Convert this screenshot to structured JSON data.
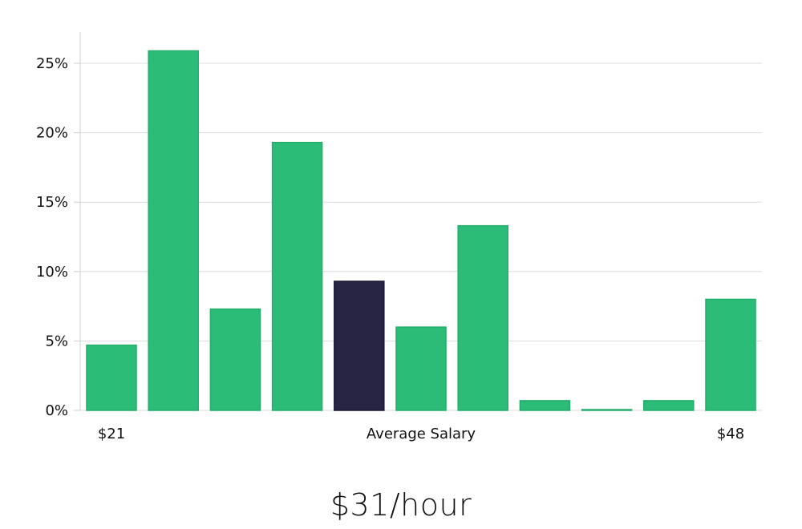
{
  "chart_data": {
    "type": "bar",
    "values": [
      4.7,
      25.9,
      7.3,
      19.3,
      9.3,
      6.0,
      13.3,
      0.7,
      0.05,
      0.7,
      8.0
    ],
    "highlight_index": 4,
    "y_unit": "%",
    "ylim": [
      0,
      27
    ],
    "yticks": [
      0,
      5,
      10,
      15,
      20,
      25
    ],
    "ytick_labels": [
      "0%",
      "5%",
      "10%",
      "15%",
      "20%",
      "25%"
    ],
    "x_labels": {
      "left": "$21",
      "center": "Average Salary",
      "right": "$48"
    },
    "grid": true,
    "colors": {
      "bar": "#2bbd77",
      "bar_edge": "#22ad6a",
      "highlight": "#282544",
      "highlight_edge": "#1a1833",
      "grid": "#dcdcdc"
    }
  },
  "headline": {
    "text": "$31/hour"
  }
}
